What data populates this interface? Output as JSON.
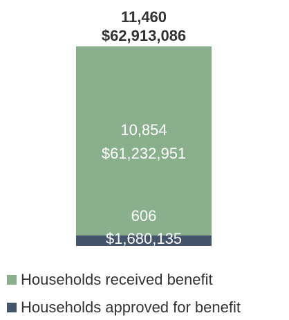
{
  "chart_data": {
    "type": "bar",
    "stacked": true,
    "categories": [
      ""
    ],
    "series": [
      {
        "name": "Households approved for benefit",
        "values": [
          606
        ],
        "amount_label": "$1,680,135",
        "count_label": "606",
        "color": "#44546a"
      },
      {
        "name": "Households received benefit",
        "values": [
          10854
        ],
        "amount_label": "$61,232,951",
        "count_label": "10,854",
        "color": "#8aaf8c"
      }
    ],
    "total": {
      "value": 11460,
      "count_label": "11,460",
      "amount_label": "$62,913,086"
    },
    "legend_position": "bottom",
    "grid": false
  }
}
